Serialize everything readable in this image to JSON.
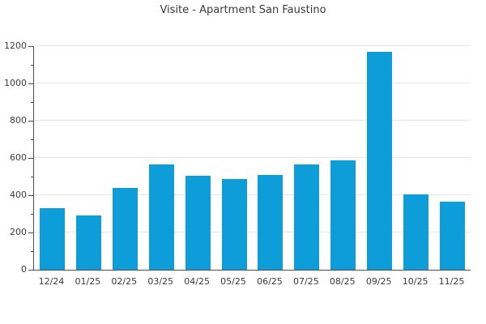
{
  "chart_data": {
    "type": "bar",
    "title": "Visite - Apartment San Faustino",
    "categories": [
      "12/24",
      "01/25",
      "02/25",
      "03/25",
      "04/25",
      "05/25",
      "06/25",
      "07/25",
      "08/25",
      "09/25",
      "10/25",
      "11/25"
    ],
    "values": [
      330,
      290,
      440,
      565,
      505,
      485,
      510,
      565,
      585,
      1170,
      405,
      365
    ],
    "xlabel": "",
    "ylabel": "",
    "ylim": [
      0,
      1200
    ],
    "yticks": [
      0,
      200,
      400,
      600,
      800,
      1000,
      1200
    ],
    "ytick_minor_step": 100,
    "grid": "horizontal-major-only",
    "legend": "none",
    "bar_color": "#0d9ed9",
    "axis_color": "#4d4d4d",
    "grid_color": "#e6e6e6",
    "text_color": "#3a3a3a"
  }
}
